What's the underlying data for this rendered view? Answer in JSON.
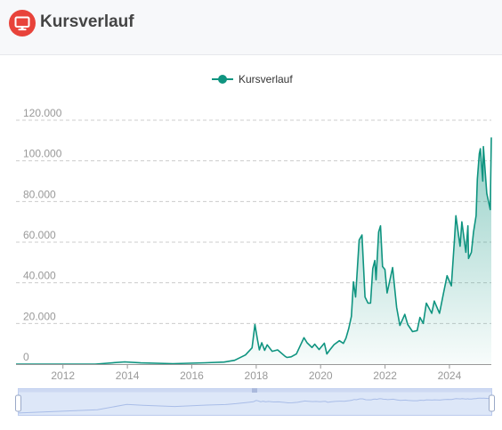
{
  "header": {
    "title": "Kursverlauf",
    "icon": "monitor-icon",
    "icon_color": "#e8433a"
  },
  "colors": {
    "series": "#0f9480",
    "grid": "#cccccc",
    "slider_fill": "#dde7f8",
    "slider_border": "#bccbee"
  },
  "chart_data": {
    "type": "area",
    "legend": {
      "labels": [
        "Kursverlauf"
      ],
      "position": "top-center"
    },
    "x_ticks": [
      "2012",
      "2014",
      "2016",
      "2018",
      "2020",
      "2022",
      "2024"
    ],
    "y_ticks": [
      "0",
      "20.000",
      "40.000",
      "60.000",
      "80.000",
      "100.000",
      "120.000"
    ],
    "xlim": [
      "2010-07-18",
      "2025-04-20"
    ],
    "ylim": [
      0,
      120000
    ],
    "grid": true,
    "series": [
      {
        "name": "Kursverlauf",
        "x": [
          "2010-07-18",
          "2013-01-01",
          "2013-12-01",
          "2014-06-01",
          "2015-06-01",
          "2016-06-01",
          "2017-01-01",
          "2017-05-01",
          "2017-09-01",
          "2017-11-15",
          "2017-12-17",
          "2018-01-15",
          "2018-02-06",
          "2018-03-05",
          "2018-04-06",
          "2018-05-05",
          "2018-07-01",
          "2018-09-01",
          "2018-11-25",
          "2018-12-15",
          "2019-02-01",
          "2019-04-01",
          "2019-06-26",
          "2019-08-01",
          "2019-09-25",
          "2019-10-26",
          "2019-12-15",
          "2020-02-12",
          "2020-03-12",
          "2020-04-15",
          "2020-06-01",
          "2020-08-01",
          "2020-09-15",
          "2020-10-15",
          "2020-11-15",
          "2020-12-15",
          "2021-01-08",
          "2021-02-01",
          "2021-03-13",
          "2021-04-14",
          "2021-05-19",
          "2021-06-22",
          "2021-07-20",
          "2021-08-15",
          "2021-09-07",
          "2021-09-21",
          "2021-10-20",
          "2021-11-10",
          "2021-12-04",
          "2021-12-31",
          "2022-01-24",
          "2022-03-28",
          "2022-05-12",
          "2022-06-18",
          "2022-08-13",
          "2022-09-15",
          "2022-11-09",
          "2022-12-31",
          "2023-01-31",
          "2023-03-10",
          "2023-04-14",
          "2023-06-15",
          "2023-07-13",
          "2023-09-11",
          "2023-10-24",
          "2023-12-05",
          "2024-01-23",
          "2024-02-28",
          "2024-03-14",
          "2024-04-20",
          "2024-05-01",
          "2024-05-21",
          "2024-07-05",
          "2024-07-29",
          "2024-08-05",
          "2024-09-06",
          "2024-09-30",
          "2024-10-29",
          "2024-11-13",
          "2024-12-05",
          "2024-12-17",
          "2025-01-13",
          "2025-01-20",
          "2025-02-28",
          "2025-04-08",
          "2025-04-20"
        ],
        "values": [
          0,
          20,
          1100,
          600,
          230,
          650,
          1000,
          1900,
          4500,
          8000,
          19500,
          12000,
          7000,
          10500,
          6800,
          9500,
          6300,
          7000,
          3800,
          3300,
          3600,
          5000,
          13000,
          10500,
          8200,
          9800,
          7200,
          10300,
          5000,
          7000,
          9600,
          11500,
          10200,
          12800,
          17500,
          23500,
          40500,
          33000,
          61000,
          63500,
          33000,
          30000,
          30000,
          47000,
          51000,
          41500,
          65000,
          68000,
          48000,
          46500,
          35000,
          47500,
          28000,
          19000,
          24500,
          19500,
          16000,
          16500,
          23000,
          20000,
          30000,
          25000,
          31000,
          25000,
          34500,
          43500,
          38500,
          62000,
          73000,
          61500,
          58000,
          70000,
          55000,
          68000,
          52000,
          55000,
          65000,
          73000,
          91000,
          103500,
          106000,
          90000,
          107000,
          84000,
          76000,
          111500
        ]
      }
    ]
  }
}
